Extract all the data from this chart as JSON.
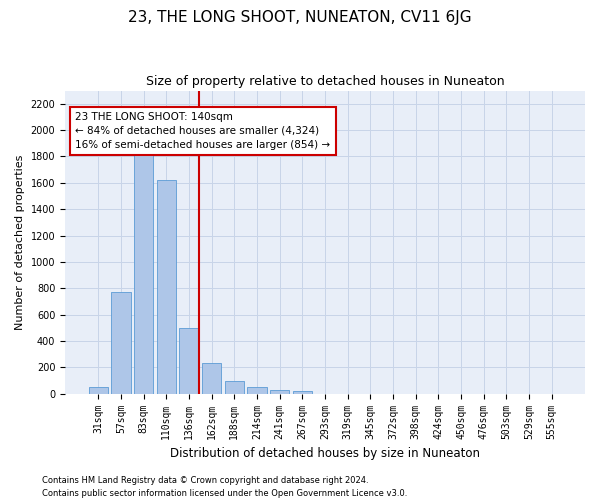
{
  "title": "23, THE LONG SHOOT, NUNEATON, CV11 6JG",
  "subtitle": "Size of property relative to detached houses in Nuneaton",
  "xlabel": "Distribution of detached houses by size in Nuneaton",
  "ylabel": "Number of detached properties",
  "categories": [
    "31sqm",
    "57sqm",
    "83sqm",
    "110sqm",
    "136sqm",
    "162sqm",
    "188sqm",
    "214sqm",
    "241sqm",
    "267sqm",
    "293sqm",
    "319sqm",
    "345sqm",
    "372sqm",
    "398sqm",
    "424sqm",
    "450sqm",
    "476sqm",
    "503sqm",
    "529sqm",
    "555sqm"
  ],
  "values": [
    50,
    770,
    1900,
    1620,
    500,
    230,
    100,
    50,
    30,
    20,
    0,
    0,
    0,
    0,
    0,
    0,
    0,
    0,
    0,
    0,
    0
  ],
  "bar_color": "#aec6e8",
  "bar_edge_color": "#5b9bd5",
  "red_line_index": 4,
  "annotation_text": "23 THE LONG SHOOT: 140sqm\n← 84% of detached houses are smaller (4,324)\n16% of semi-detached houses are larger (854) →",
  "annotation_box_color": "#ffffff",
  "annotation_box_edge": "#cc0000",
  "red_line_color": "#cc0000",
  "ylim": [
    0,
    2300
  ],
  "yticks": [
    0,
    200,
    400,
    600,
    800,
    1000,
    1200,
    1400,
    1600,
    1800,
    2000,
    2200
  ],
  "grid_color": "#c8d4e8",
  "background_color": "#e8eef8",
  "footer_line1": "Contains HM Land Registry data © Crown copyright and database right 2024.",
  "footer_line2": "Contains public sector information licensed under the Open Government Licence v3.0.",
  "title_fontsize": 11,
  "subtitle_fontsize": 9,
  "tick_fontsize": 7,
  "ylabel_fontsize": 8,
  "xlabel_fontsize": 8.5,
  "footer_fontsize": 6,
  "annot_fontsize": 7.5
}
